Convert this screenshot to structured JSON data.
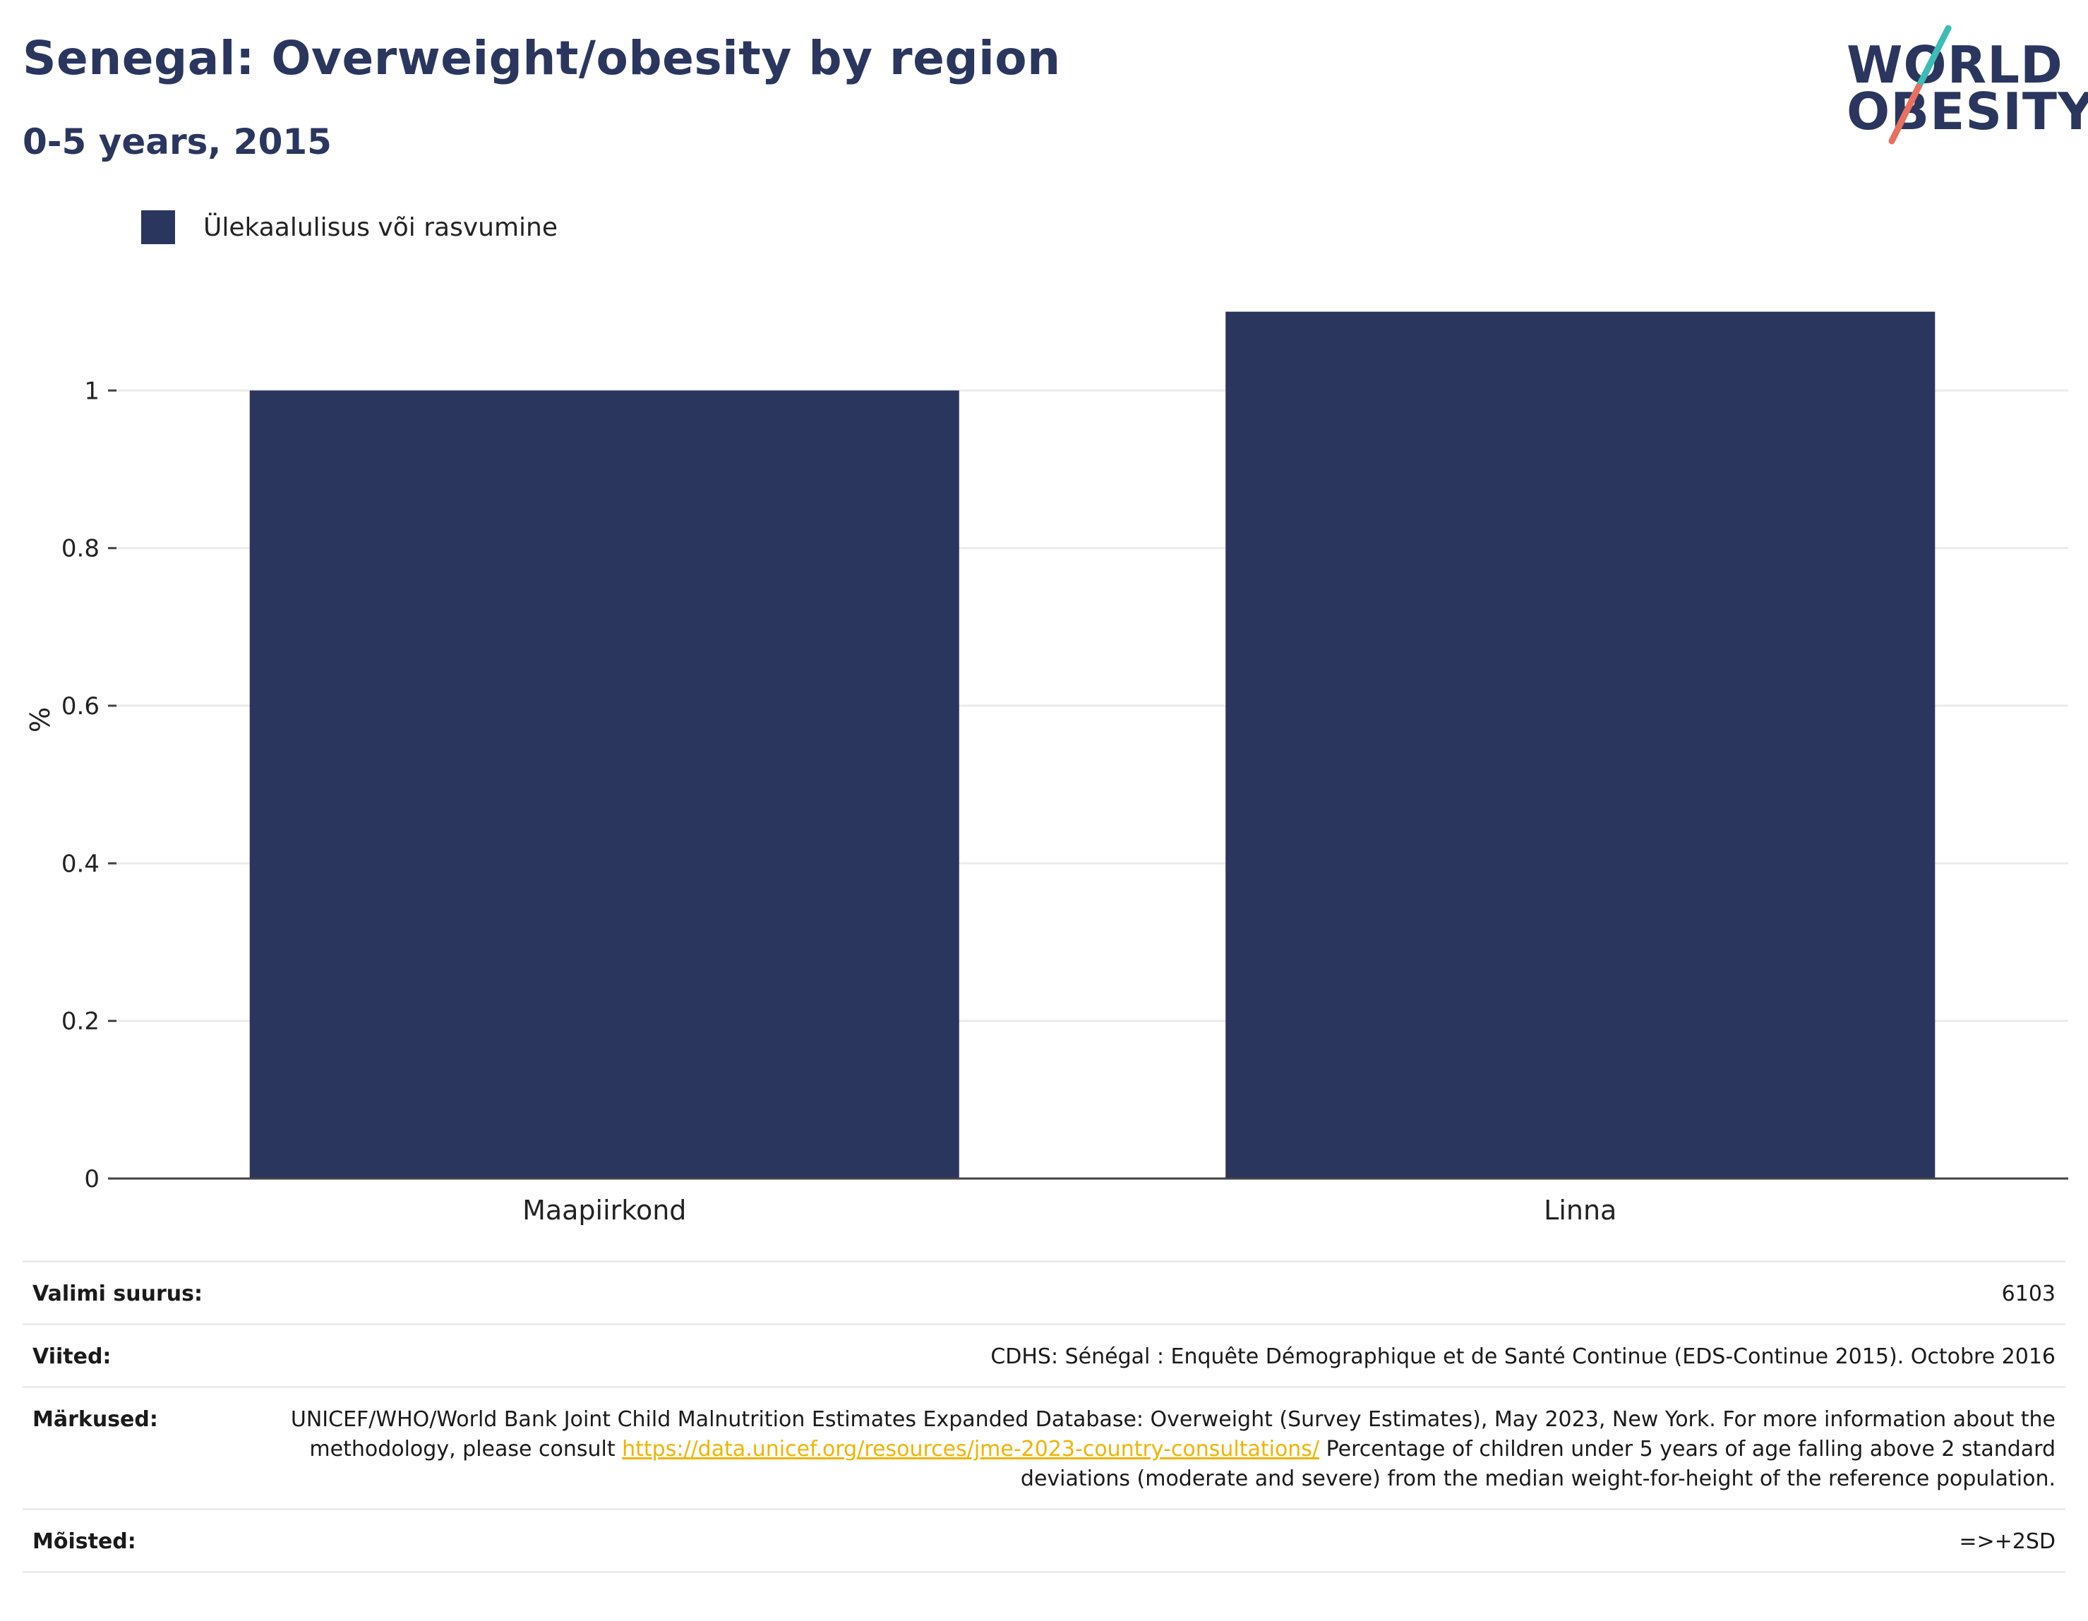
{
  "header": {
    "title": "Senegal: Overweight/obesity by region",
    "subtitle": "0-5 years, 2015",
    "logo_line1": "WORLD",
    "logo_line2": "OBESITY"
  },
  "legend": {
    "label": "Ülekaalulisus või rasvumine",
    "color": "#2b365f"
  },
  "chart_data": {
    "type": "bar",
    "categories": [
      "Maapiirkond",
      "Linna"
    ],
    "series": [
      {
        "name": "Ülekaalulisus või rasvumine",
        "values": [
          1.0,
          1.1
        ],
        "color": "#2b365f"
      }
    ],
    "ylabel": "%",
    "ylim": [
      0,
      1.2
    ],
    "yticks": [
      0,
      0.2,
      0.4,
      0.6,
      0.8,
      1
    ],
    "ytick_labels": [
      "0",
      "0.2",
      "0.4",
      "0.6",
      "0.8",
      "1"
    ],
    "grid": true
  },
  "meta": {
    "sample_size_label": "Valimi suurus:",
    "sample_size_value": "6103",
    "references_label": "Viited:",
    "references_value": "CDHS: Sénégal : Enquête Démographique et de Santé Continue (EDS-Continue 2015). Octobre 2016",
    "notes_label": "Märkused:",
    "notes_text1": "UNICEF/WHO/World Bank Joint Child Malnutrition Estimates Expanded Database: Overweight (Survey Estimates), May 2023, New York. For more information about the methodology, please consult ",
    "notes_link": "https://data.unicef.org/resources/jme-2023-country-consultations/",
    "notes_text2": "Percentage of children under 5 years of age falling above 2 standard deviations (moderate and severe) from the median weight-for-height of the reference population.",
    "definitions_label": "Mõisted:",
    "definitions_value": "=>+2SD"
  }
}
